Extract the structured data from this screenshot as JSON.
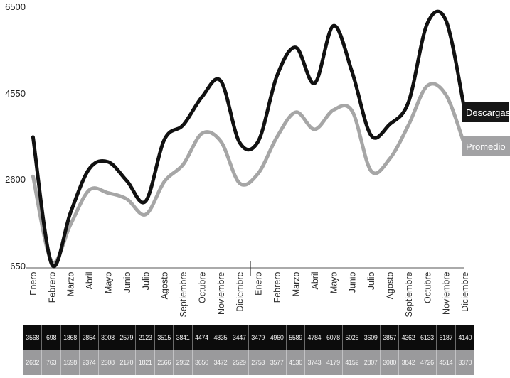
{
  "chart_data": {
    "type": "line",
    "title": "",
    "xlabel": "",
    "ylabel": "",
    "categories": [
      "Enero",
      "Febrero",
      "Marzo",
      "Abril",
      "Mayo",
      "Junio",
      "Julio",
      "Agosto",
      "Septiembre",
      "Octubre",
      "Noviembre",
      "Diciembre",
      "Enero",
      "Febrero",
      "Marzo",
      "Abril",
      "Mayo",
      "Junio",
      "Julio",
      "Agosto",
      "Septiembre",
      "Octubre",
      "Noviembre",
      "Diciembre"
    ],
    "series": [
      {
        "name": "Descargas",
        "color": "#111111",
        "values": [
          3568,
          698,
          1868,
          2854,
          3008,
          2579,
          2123,
          3515,
          3841,
          4474,
          4835,
          3447,
          3479,
          4960,
          5589,
          4784,
          6078,
          5026,
          3609,
          3857,
          4362,
          6133,
          6187,
          4140
        ]
      },
      {
        "name": "Promedio",
        "color": "#a6a6a6",
        "values": [
          2682,
          763,
          1598,
          2374,
          2308,
          2170,
          1821,
          2566,
          2952,
          3650,
          3472,
          2529,
          2753,
          3577,
          4130,
          3743,
          4179,
          4152,
          2807,
          3080,
          3842,
          4726,
          4514,
          3370
        ]
      }
    ],
    "yticks": [
      650,
      2600,
      4550,
      6500
    ],
    "ylim": [
      650,
      6500
    ],
    "grid": false,
    "legend_position": "right-of-line-ends",
    "year_divider_after_index": 11
  },
  "legend": {
    "descargas_bg": "#161616",
    "promedio_bg": "#a2a2a4"
  },
  "table": {
    "row_colors": [
      "#0c0c0c",
      "#9a9a9c"
    ]
  }
}
